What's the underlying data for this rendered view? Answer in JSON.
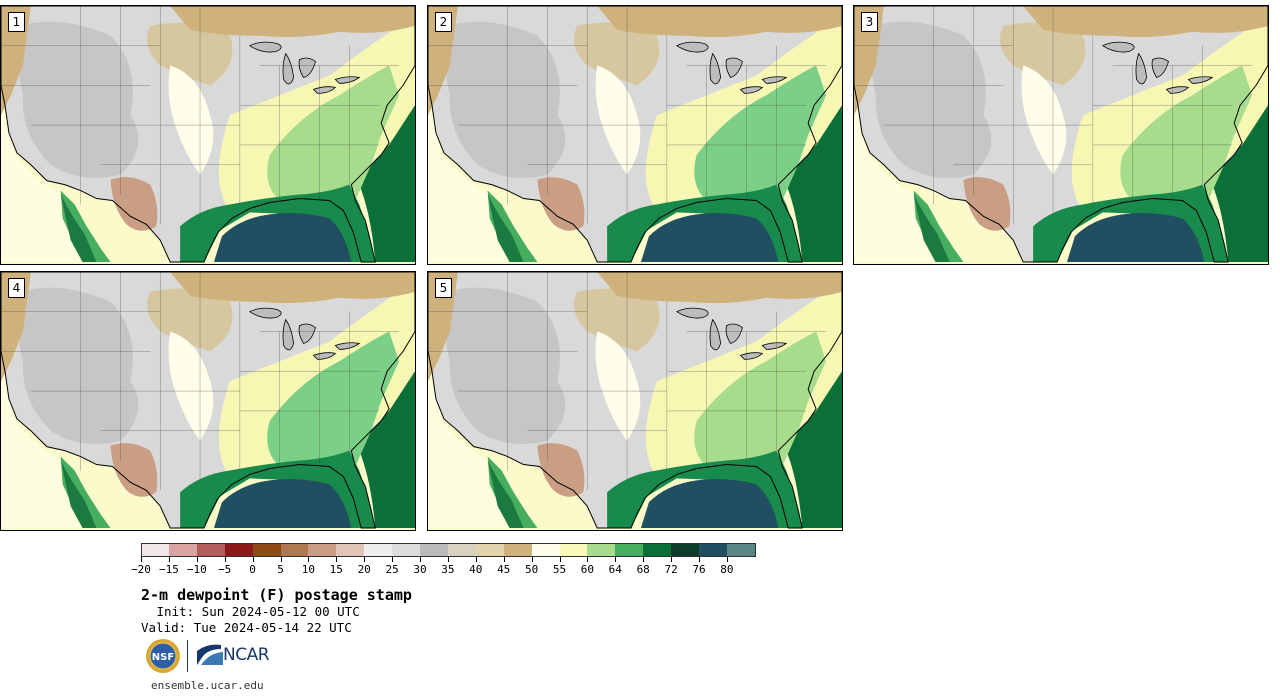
{
  "figure": {
    "title": "2-m dewpoint (F) postage stamp",
    "init": " Init: Sun 2024-05-12 00 UTC",
    "valid": "Valid: Tue 2024-05-14 22 UTC",
    "website": "ensemble.ucar.edu",
    "org_logos": [
      "NSF",
      "NCAR"
    ]
  },
  "panels": [
    {
      "member": "1"
    },
    {
      "member": "2"
    },
    {
      "member": "3"
    },
    {
      "member": "4"
    },
    {
      "member": "5"
    }
  ],
  "colorbar": {
    "tick_labels": [
      "−20",
      "−15",
      "−10",
      "−5",
      "0",
      "5",
      "10",
      "15",
      "20",
      "25",
      "30",
      "35",
      "40",
      "45",
      "50",
      "55",
      "60",
      "64",
      "68",
      "72",
      "76",
      "80"
    ],
    "colors": [
      "#f3e6e6",
      "#d9a3a3",
      "#b35c5c",
      "#8c1a1a",
      "#8c4a14",
      "#b07850",
      "#c99e84",
      "#e0c5b6",
      "#eeeeee",
      "#dddddd",
      "#bbbbbb",
      "#d8d2c2",
      "#e2d5ac",
      "#cfb27b",
      "#fffeea",
      "#fafab8",
      "#a6dc8c",
      "#47ae5f",
      "#0a7038",
      "#0d3d28",
      "#1f4f60",
      "#5a8686"
    ]
  }
}
